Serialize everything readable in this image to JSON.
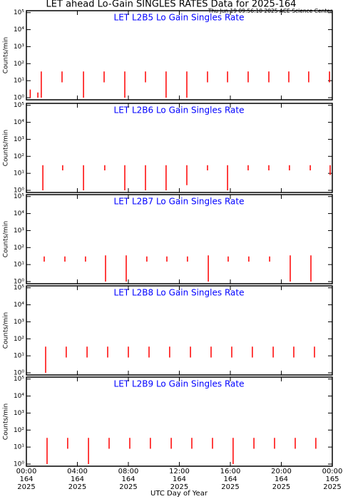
{
  "title": "LET ahead Lo-Gain SINGLES RATES Data for 2025-164",
  "timestamp": "Thu Jun 19 09:56:10 2025 ACE Science Center",
  "xlabel": "UTC Day of Year",
  "chart_data": [
    {
      "type": "line",
      "title": "LET L2B5 Lo Gain Singles Rate",
      "ylabel": "Counts/min",
      "ylog": true,
      "ylim": [
        0.75,
        130000
      ],
      "yticks": [
        {
          "value": 1,
          "label": "10⁰"
        },
        {
          "value": 10,
          "label": "10¹"
        },
        {
          "value": 100,
          "label": "10²"
        },
        {
          "value": 1000,
          "label": "10³"
        },
        {
          "value": 10000,
          "label": "10⁴"
        },
        {
          "value": 100000,
          "label": "10⁵"
        }
      ],
      "xlim": [
        0,
        24
      ],
      "xticks": [
        0,
        4,
        8,
        12,
        16,
        20,
        24
      ],
      "series": [
        {
          "color": "#ff0000",
          "x": [
            0.3,
            0.3,
            0.3,
            0.9,
            0.9,
            0.9,
            1.17,
            1.17,
            1.17,
            2.8,
            2.8,
            2.8,
            4.48,
            4.48,
            4.48,
            6.1,
            6.1,
            6.1,
            7.72,
            7.72,
            7.72,
            9.34,
            9.34,
            9.34,
            10.96,
            10.96,
            10.96,
            12.59,
            12.59,
            12.59,
            14.21,
            14.21,
            14.21,
            15.78,
            15.78,
            15.78,
            17.4,
            17.4,
            17.4,
            19.02,
            19.02,
            19.02,
            20.59,
            20.59,
            20.59,
            22.15,
            22.15,
            22.15,
            23.78,
            23.78
          ],
          "values": [
            3,
            1,
            null,
            2,
            1,
            null,
            35,
            1,
            null,
            35,
            8,
            null,
            35,
            1,
            null,
            35,
            8,
            null,
            35,
            1,
            null,
            35,
            8,
            null,
            35,
            1,
            null,
            35,
            1,
            null,
            35,
            8,
            null,
            35,
            8,
            null,
            35,
            8,
            null,
            35,
            8,
            null,
            35,
            8,
            null,
            35,
            8,
            null,
            35,
            8
          ]
        }
      ]
    },
    {
      "type": "line",
      "title": "LET L2B6 Lo Gain Singles Rate",
      "ylabel": "Counts/min",
      "ylog": true,
      "ylim": [
        0.75,
        130000
      ],
      "yticks": [
        {
          "value": 1,
          "label": "10⁰"
        },
        {
          "value": 10,
          "label": "10¹"
        },
        {
          "value": 100,
          "label": "10²"
        },
        {
          "value": 1000,
          "label": "10³"
        },
        {
          "value": 10000,
          "label": "10⁴"
        },
        {
          "value": 100000,
          "label": "10⁵"
        }
      ],
      "xlim": [
        0,
        24
      ],
      "xticks": [
        0,
        4,
        8,
        12,
        16,
        20,
        24
      ],
      "series": [
        {
          "color": "#ff0000",
          "x": [
            1.29,
            1.29,
            1.29,
            2.85,
            2.85,
            2.85,
            4.48,
            4.48,
            4.48,
            6.15,
            6.15,
            6.15,
            7.72,
            7.72,
            7.72,
            9.34,
            9.34,
            9.34,
            10.96,
            10.96,
            10.96,
            12.59,
            12.59,
            12.59,
            14.21,
            14.21,
            14.21,
            15.78,
            15.78,
            15.78,
            17.4,
            17.4,
            17.4,
            19.02,
            19.02,
            19.02,
            20.64,
            20.64,
            20.64,
            22.27,
            22.27,
            22.27,
            23.83,
            23.83
          ],
          "values": [
            30,
            1,
            null,
            30,
            15,
            null,
            30,
            1,
            null,
            30,
            15,
            null,
            30,
            1,
            null,
            30,
            1,
            null,
            30,
            1,
            null,
            30,
            2,
            null,
            30,
            15,
            null,
            30,
            1,
            null,
            30,
            15,
            null,
            30,
            15,
            null,
            30,
            15,
            null,
            30,
            15,
            null,
            30,
            8
          ]
        }
      ]
    },
    {
      "type": "line",
      "title": "LET L2B7 Lo Gain Singles Rate",
      "ylabel": "Counts/min",
      "ylog": true,
      "ylim": [
        0.75,
        130000
      ],
      "yticks": [
        {
          "value": 1,
          "label": "10⁰"
        },
        {
          "value": 10,
          "label": "10¹"
        },
        {
          "value": 100,
          "label": "10²"
        },
        {
          "value": 1000,
          "label": "10³"
        },
        {
          "value": 10000,
          "label": "10⁴"
        },
        {
          "value": 100000,
          "label": "10⁵"
        }
      ],
      "xlim": [
        0,
        24
      ],
      "xticks": [
        0,
        4,
        8,
        12,
        16,
        20,
        24
      ],
      "series": [
        {
          "color": "#ff0000",
          "x": [
            1.4,
            1.4,
            1.4,
            3.02,
            3.02,
            3.02,
            4.64,
            4.64,
            4.64,
            6.21,
            6.21,
            6.21,
            7.83,
            7.83,
            7.83,
            9.45,
            9.45,
            9.45,
            11.02,
            11.02,
            11.02,
            12.64,
            12.64,
            12.64,
            14.27,
            14.27,
            14.27,
            15.83,
            15.83,
            15.83,
            17.45,
            17.45,
            17.45,
            19.08,
            19.08,
            19.08,
            20.7,
            20.7,
            20.7,
            22.32,
            22.32
          ],
          "values": [
            30,
            15,
            null,
            30,
            15,
            null,
            30,
            15,
            null,
            35,
            1,
            null,
            35,
            1,
            null,
            30,
            15,
            null,
            30,
            15,
            null,
            30,
            15,
            null,
            35,
            1,
            null,
            30,
            15,
            null,
            30,
            15,
            null,
            30,
            15,
            null,
            35,
            1,
            null,
            35,
            1
          ]
        }
      ]
    },
    {
      "type": "line",
      "title": "LET L2B8 Lo Gain Singles Rate",
      "ylabel": "Counts/min",
      "ylog": true,
      "ylim": [
        0.75,
        130000
      ],
      "yticks": [
        {
          "value": 1,
          "label": "10⁰"
        },
        {
          "value": 10,
          "label": "10¹"
        },
        {
          "value": 100,
          "label": "10²"
        },
        {
          "value": 1000,
          "label": "10³"
        },
        {
          "value": 10000,
          "label": "10⁴"
        },
        {
          "value": 100000,
          "label": "10⁵"
        }
      ],
      "xlim": [
        0,
        24
      ],
      "xticks": [
        0,
        4,
        8,
        12,
        16,
        20,
        24
      ],
      "series": [
        {
          "color": "#ff0000",
          "x": [
            1.51,
            1.51,
            1.51,
            3.13,
            3.13,
            3.13,
            4.76,
            4.76,
            4.76,
            6.38,
            6.38,
            6.38,
            8.0,
            8.0,
            8.0,
            9.62,
            9.62,
            9.62,
            11.24,
            11.24,
            11.24,
            12.87,
            12.87,
            12.87,
            14.49,
            14.49,
            14.49,
            16.11,
            16.11,
            16.11,
            17.73,
            17.73,
            17.73,
            19.36,
            19.36,
            19.36,
            20.98,
            20.98,
            20.98,
            22.6,
            22.6
          ],
          "values": [
            35,
            1,
            null,
            35,
            8,
            null,
            35,
            8,
            null,
            35,
            8,
            null,
            35,
            8,
            null,
            35,
            8,
            null,
            35,
            8,
            null,
            35,
            8,
            null,
            35,
            8,
            null,
            35,
            8,
            null,
            35,
            8,
            null,
            35,
            8,
            null,
            35,
            8,
            null,
            35,
            8
          ]
        }
      ]
    },
    {
      "type": "line",
      "title": "LET L2B9 Lo Gain Singles Rate",
      "ylabel": "Counts/min",
      "ylog": true,
      "ylim": [
        0.75,
        130000
      ],
      "yticks": [
        {
          "value": 1,
          "label": "10⁰"
        },
        {
          "value": 10,
          "label": "10¹"
        },
        {
          "value": 100,
          "label": "10²"
        },
        {
          "value": 1000,
          "label": "10³"
        },
        {
          "value": 10000,
          "label": "10⁴"
        },
        {
          "value": 100000,
          "label": "10⁵"
        }
      ],
      "xlim": [
        0,
        24
      ],
      "xticks": [
        {
          "value": 0,
          "label": "00:00"
        },
        {
          "value": 4,
          "label": "04:00"
        },
        {
          "value": 8,
          "label": "08:00"
        },
        {
          "value": 12,
          "label": "12:00"
        },
        {
          "value": 16,
          "label": "16:00"
        },
        {
          "value": 20,
          "label": "20:00"
        },
        {
          "value": 24,
          "label": "00:00"
        }
      ],
      "xtick_sublabels": [
        [
          "164",
          "2025"
        ],
        [
          "164",
          "2025"
        ],
        [
          "164",
          "2025"
        ],
        [
          "164",
          "2025"
        ],
        [
          "164",
          "2025"
        ],
        [
          "164",
          "2025"
        ],
        [
          "165",
          "2025"
        ]
      ],
      "series": [
        {
          "color": "#ff0000",
          "x": [
            1.62,
            1.62,
            1.62,
            3.24,
            3.24,
            3.24,
            4.87,
            4.87,
            4.87,
            6.49,
            6.49,
            6.49,
            8.11,
            8.11,
            8.11,
            9.73,
            9.73,
            9.73,
            11.36,
            11.36,
            11.36,
            12.98,
            12.98,
            12.98,
            14.6,
            14.6,
            14.6,
            16.22,
            16.22,
            16.22,
            17.85,
            17.85,
            17.85,
            19.47,
            19.47,
            19.47,
            21.09,
            21.09,
            21.09,
            22.71,
            22.71
          ],
          "values": [
            35,
            1,
            null,
            35,
            8,
            null,
            35,
            1,
            null,
            35,
            8,
            null,
            35,
            8,
            null,
            35,
            8,
            null,
            35,
            8,
            null,
            35,
            8,
            null,
            35,
            8,
            null,
            35,
            1,
            null,
            35,
            8,
            null,
            35,
            8,
            null,
            35,
            8,
            null,
            35,
            8
          ]
        }
      ]
    }
  ]
}
